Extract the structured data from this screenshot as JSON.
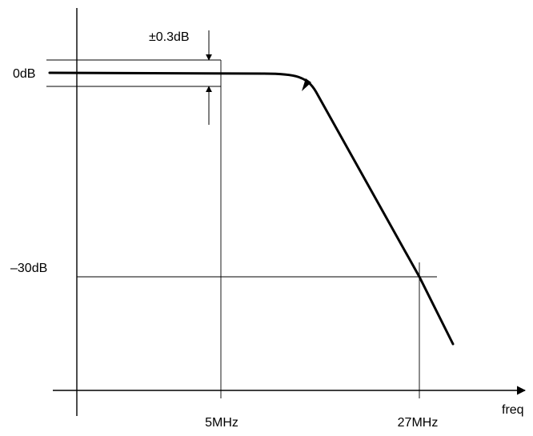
{
  "diagram": {
    "x_axis_label": "freq",
    "y_tick_0db": "0dB",
    "y_tick_minus30db": "–30dB",
    "x_tick_5mhz": "5MHz",
    "x_tick_27mhz": "27MHz",
    "tolerance_label": "±0.3dB"
  },
  "colors": {
    "line": "#000000",
    "background": "#ffffff"
  }
}
